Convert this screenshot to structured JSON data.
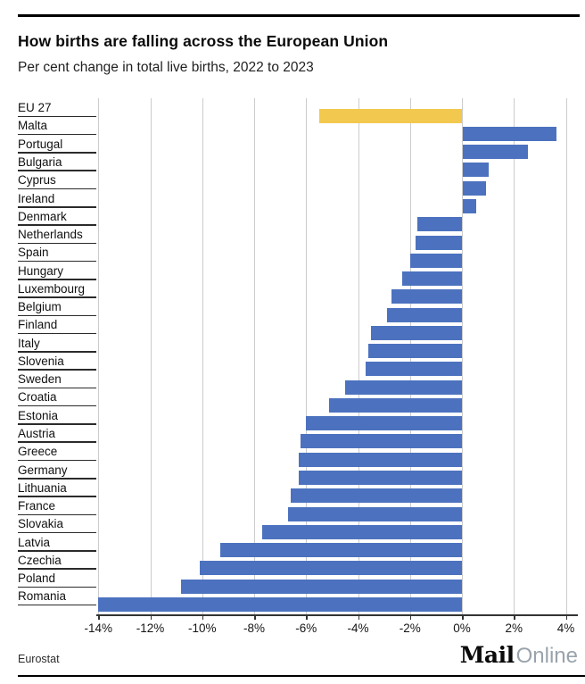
{
  "header": {
    "title": "How births are falling across the European Union",
    "subtitle": "Per cent change in total live births, 2022 to 2023"
  },
  "footer": {
    "source": "Eurostat",
    "brand_bold": "Mail",
    "brand_light": "Online"
  },
  "chart_data": {
    "type": "bar",
    "orientation": "horizontal",
    "title": "How births are falling across the European Union",
    "subtitle": "Per cent change in total live births, 2022 to 2023",
    "source": "Eurostat",
    "unit": "percent",
    "categories": [
      "EU 27",
      "Malta",
      "Portugal",
      "Bulgaria",
      "Cyprus",
      "Ireland",
      "Denmark",
      "Netherlands",
      "Spain",
      "Hungary",
      "Luxembourg",
      "Belgium",
      "Finland",
      "Italy",
      "Slovenia",
      "Sweden",
      "Croatia",
      "Estonia",
      "Austria",
      "Greece",
      "Germany",
      "Lithuania",
      "France",
      "Slovakia",
      "Latvia",
      "Czechia",
      "Poland",
      "Romania"
    ],
    "values": [
      -5.5,
      3.6,
      2.5,
      1.0,
      0.9,
      0.5,
      -1.7,
      -1.8,
      -2.0,
      -2.3,
      -2.7,
      -2.9,
      -3.5,
      -3.6,
      -3.7,
      -4.5,
      -5.1,
      -6.0,
      -6.2,
      -6.3,
      -6.3,
      -6.6,
      -6.7,
      -7.7,
      -9.3,
      -10.1,
      -10.8,
      -14.0
    ],
    "highlight_index": 0,
    "highlight_category": "EU 27",
    "x_ticks": [
      {
        "label": "-14%",
        "value": -14
      },
      {
        "label": "-12%",
        "value": -12
      },
      {
        "label": "-10%",
        "value": -10
      },
      {
        "label": "-8%",
        "value": -8
      },
      {
        "label": "-6%",
        "value": -6
      },
      {
        "label": "-4%",
        "value": -4
      },
      {
        "label": "-2%",
        "value": -2
      },
      {
        "label": "0%",
        "value": 0
      },
      {
        "label": "2%",
        "value": 2
      },
      {
        "label": "4%",
        "value": 4
      }
    ],
    "xlim": [
      -14.3,
      4.7
    ],
    "gridlines": true,
    "legend": "none",
    "colors": {
      "bar": "#4C72BF",
      "highlight": "#F2C84E",
      "gridline": "#CCCCCC",
      "axis": "#333333",
      "row_line": "#2B2B2B"
    }
  }
}
